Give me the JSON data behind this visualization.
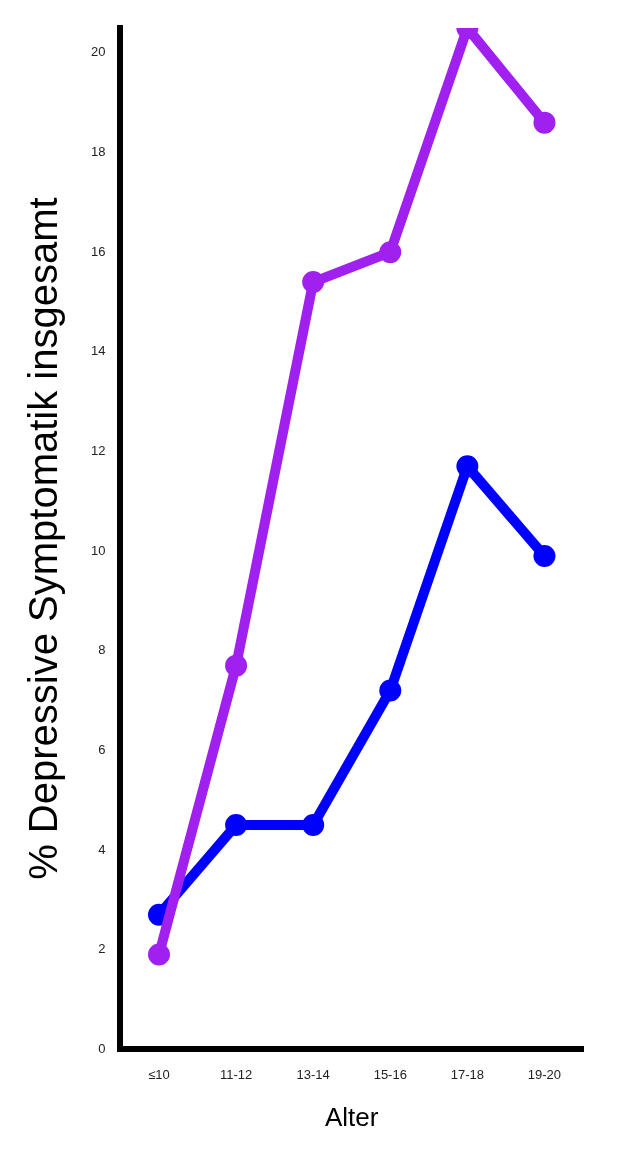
{
  "chart_data": {
    "type": "line",
    "xlabel": "Alter",
    "ylabel": "% Depressive Symptomatik insgesamt",
    "categories": [
      "≤10",
      "11-12",
      "13-14",
      "15-16",
      "17-18",
      "19-20"
    ],
    "series": [
      {
        "color": "#a020f0",
        "values": [
          1.9,
          7.7,
          15.4,
          16.0,
          20.5,
          18.6
        ]
      },
      {
        "color": "#0000ff",
        "values": [
          2.7,
          4.5,
          4.5,
          7.2,
          11.7,
          9.9
        ]
      }
    ],
    "ylim": [
      0,
      20.5
    ],
    "yticks": [
      0,
      2,
      4,
      6,
      8,
      10,
      12,
      14,
      16,
      18,
      20
    ],
    "grid": false,
    "legend": false,
    "marker": "circle",
    "line_style": "solid"
  }
}
